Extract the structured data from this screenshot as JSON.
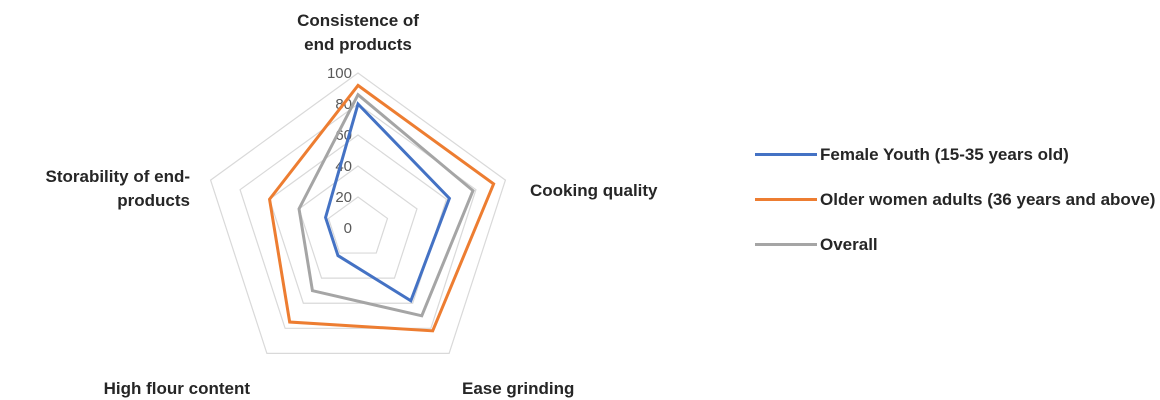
{
  "chart_data": {
    "type": "radar",
    "axes": [
      [
        "Consistence of",
        "end products"
      ],
      [
        "Cooking quality"
      ],
      [
        "Ease grinding"
      ],
      [
        "High flour content"
      ],
      [
        "Storability of end-",
        "products"
      ]
    ],
    "ticks": [
      "0",
      "20",
      "40",
      "60",
      "80",
      "100"
    ],
    "rlim": [
      0,
      100
    ],
    "grid": true,
    "legend_position": "right",
    "series": [
      {
        "name": "Female Youth (15-35 years old)",
        "color": "#4472C4",
        "values": [
          80,
          62,
          58,
          22,
          22
        ]
      },
      {
        "name": "Older women adults (36 years and above)",
        "color": "#ED7D31",
        "values": [
          92,
          92,
          82,
          75,
          60
        ]
      },
      {
        "name": "Overall",
        "color": "#A5A5A5",
        "values": [
          86,
          78,
          70,
          50,
          40
        ]
      }
    ]
  }
}
